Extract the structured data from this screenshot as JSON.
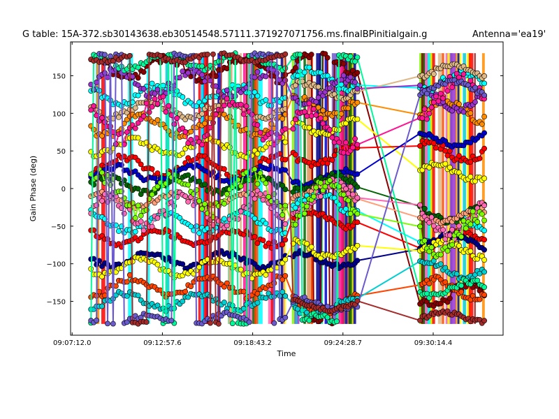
{
  "figure": {
    "title_left": "G table: 15A-372.sb30143638.eb30514548.57111.371927071756.ms.finalBPinitialgain.g",
    "title_right": "Antenna='ea19'"
  },
  "chart_data": {
    "type": "line",
    "title": "G table: 15A-372.sb30143638.eb30514548.57111.371927071756.ms.finalBPinitialgain.g",
    "xlabel": "Time",
    "ylabel": "Gain Phase (deg)",
    "x_tick_labels": [
      "09:07:12.0",
      "09:12:57.6",
      "09:18:43.2",
      "09:24:28.7",
      "09:30:14.4"
    ],
    "x_ticks_minutes": [
      0,
      5.76,
      11.52,
      17.28,
      23.04
    ],
    "xlim_minutes": [
      -0.1,
      27.5
    ],
    "y_ticks": [
      -150,
      -100,
      -50,
      0,
      50,
      100,
      150
    ],
    "ylim": [
      -195,
      195
    ],
    "grid": false,
    "scan_ranges_minutes": [
      [
        1.2,
        13.6
      ],
      [
        14.1,
        18.2
      ],
      [
        22.2,
        26.3
      ]
    ],
    "series": [
      {
        "color": "#8b0000",
        "base": 160,
        "amp": 15,
        "values": []
      },
      {
        "color": "#00ffff",
        "base": 125,
        "amp": 12,
        "values": []
      },
      {
        "color": "#deb887",
        "base": 105,
        "amp": 10,
        "values": []
      },
      {
        "color": "#ff8c00",
        "base": 85,
        "amp": 14,
        "values": []
      },
      {
        "color": "#ffff00",
        "base": 55,
        "amp": 10,
        "values": []
      },
      {
        "color": "#ff0000",
        "base": 30,
        "amp": 12,
        "values": []
      },
      {
        "color": "#0000cd",
        "base": 20,
        "amp": 9,
        "values": []
      },
      {
        "color": "#006400",
        "base": 5,
        "amp": 10,
        "values": []
      },
      {
        "color": "#ffa07a",
        "base": -15,
        "amp": 8,
        "values": []
      },
      {
        "color": "#00ffff",
        "base": -45,
        "amp": 12,
        "values": []
      },
      {
        "color": "#ff0000",
        "base": -65,
        "amp": 10,
        "values": []
      },
      {
        "color": "#00008b",
        "base": -95,
        "amp": 9,
        "values": []
      },
      {
        "color": "#ffff00",
        "base": -105,
        "amp": 11,
        "values": []
      },
      {
        "color": "#ff4500",
        "base": -130,
        "amp": 12,
        "values": []
      },
      {
        "color": "#00ced1",
        "base": -150,
        "amp": 10,
        "values": []
      },
      {
        "color": "#9932cc",
        "base": 140,
        "amp": 15,
        "values": []
      },
      {
        "color": "#ff69b4",
        "base": -30,
        "amp": 20,
        "values": []
      },
      {
        "color": "#7cfc00",
        "base": -5,
        "amp": 25,
        "values": []
      },
      {
        "color": "#00fa9a",
        "base": 170,
        "amp": 10,
        "values": []
      },
      {
        "color": "#ff1493",
        "base": 90,
        "amp": 25,
        "values": []
      },
      {
        "color": "#6a5acd",
        "base": -175,
        "amp": 8,
        "values": []
      },
      {
        "color": "#a52a2a",
        "base": 175,
        "amp": 6,
        "values": []
      }
    ]
  }
}
